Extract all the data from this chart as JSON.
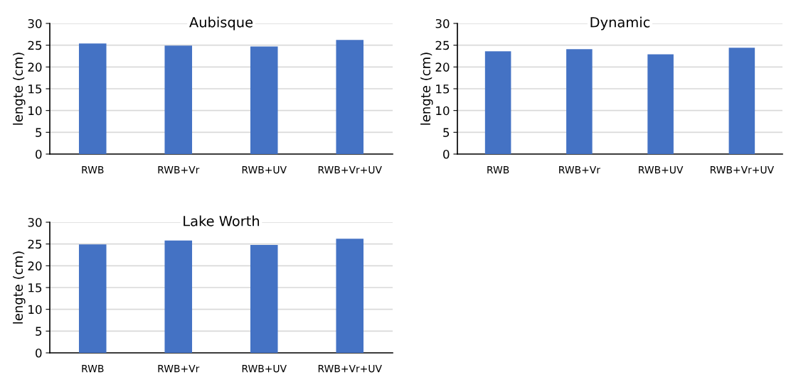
{
  "chart_data": [
    {
      "type": "bar",
      "title": "Aubisque",
      "ylabel": "lengte (cm)",
      "categories": [
        "RWB",
        "RWB+Vr",
        "RWB+UV",
        "RWB+Vr+UV"
      ],
      "values": [
        25.4,
        24.9,
        24.7,
        26.2
      ],
      "color": "#4472c4",
      "ylim": [
        0,
        30
      ],
      "yticks": [
        0,
        5,
        10,
        15,
        20,
        25,
        30
      ],
      "grid": "y"
    },
    {
      "type": "bar",
      "title": "Dynamic",
      "ylabel": "lengte (cm)",
      "categories": [
        "RWB",
        "RWB+Vr",
        "RWB+UV",
        "RWB+Vr+UV"
      ],
      "values": [
        23.6,
        24.1,
        22.9,
        24.4
      ],
      "color": "#4472c4",
      "ylim": [
        0,
        30
      ],
      "yticks": [
        0,
        5,
        10,
        15,
        20,
        25,
        30
      ],
      "grid": "y"
    },
    {
      "type": "bar",
      "title": "Lake Worth",
      "ylabel": "lengte (cm)",
      "categories": [
        "RWB",
        "RWB+Vr",
        "RWB+UV",
        "RWB+Vr+UV"
      ],
      "values": [
        24.9,
        25.8,
        24.8,
        26.2
      ],
      "color": "#4472c4",
      "ylim": [
        0,
        30
      ],
      "yticks": [
        0,
        5,
        10,
        15,
        20,
        25,
        30
      ],
      "grid": "y"
    }
  ]
}
